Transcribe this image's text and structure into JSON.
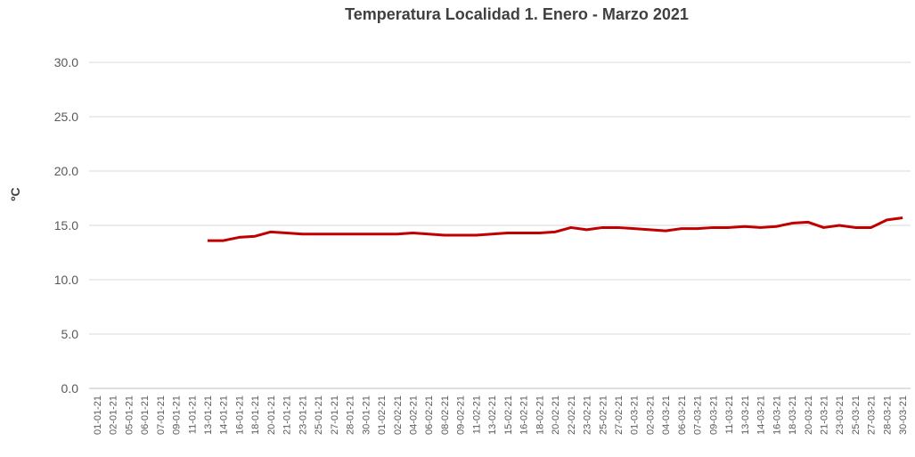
{
  "chart_data": {
    "type": "line",
    "title": "Temperatura  Localidad 1. Enero - Marzo 2021",
    "y_label": "ºC",
    "categories": [
      "01-01-21",
      "02-01-21",
      "05-01-21",
      "06-01-21",
      "07-01-21",
      "09-01-21",
      "11-01-21",
      "13-01-21",
      "14-01-21",
      "16-01-21",
      "18-01-21",
      "20-01-21",
      "21-01-21",
      "23-01-21",
      "25-01-21",
      "27-01-21",
      "28-01-21",
      "30-01-21",
      "01-02-21",
      "02-02-21",
      "04-02-21",
      "06-02-21",
      "08-02-21",
      "09-02-21",
      "11-02-21",
      "13-02-21",
      "15-02-21",
      "16-02-21",
      "18-02-21",
      "20-02-21",
      "22-02-21",
      "23-02-21",
      "25-02-21",
      "27-02-21",
      "01-03-21",
      "02-03-21",
      "04-03-21",
      "06-03-21",
      "07-03-21",
      "09-03-21",
      "11-03-21",
      "13-03-21",
      "14-03-21",
      "16-03-21",
      "18-03-21",
      "20-03-21",
      "21-03-21",
      "23-03-21",
      "25-03-21",
      "27-03-21",
      "28-03-21",
      "30-03-21"
    ],
    "series": [
      {
        "color": "#c00000",
        "values": [
          null,
          null,
          null,
          null,
          null,
          null,
          null,
          13.6,
          13.6,
          13.9,
          14.0,
          14.4,
          14.3,
          14.2,
          14.2,
          14.2,
          14.2,
          14.2,
          14.2,
          14.2,
          14.3,
          14.2,
          14.1,
          14.1,
          14.1,
          14.2,
          14.3,
          14.3,
          14.3,
          14.4,
          14.8,
          14.6,
          14.8,
          14.8,
          14.7,
          14.6,
          14.5,
          14.7,
          14.7,
          14.8,
          14.8,
          14.9,
          14.8,
          14.9,
          15.2,
          15.3,
          14.8,
          15.0,
          14.8,
          14.8,
          15.5,
          15.7
        ]
      }
    ],
    "ylim": [
      0,
      30
    ],
    "yticks": [
      {
        "value": 0,
        "label": "0.0"
      },
      {
        "value": 5,
        "label": "5.0"
      },
      {
        "value": 10,
        "label": "10.0"
      },
      {
        "value": 15,
        "label": "15.0"
      },
      {
        "value": 20,
        "label": "20.0"
      },
      {
        "value": 25,
        "label": "25.0"
      },
      {
        "value": 30,
        "label": "30.0"
      }
    ],
    "grid": true
  }
}
